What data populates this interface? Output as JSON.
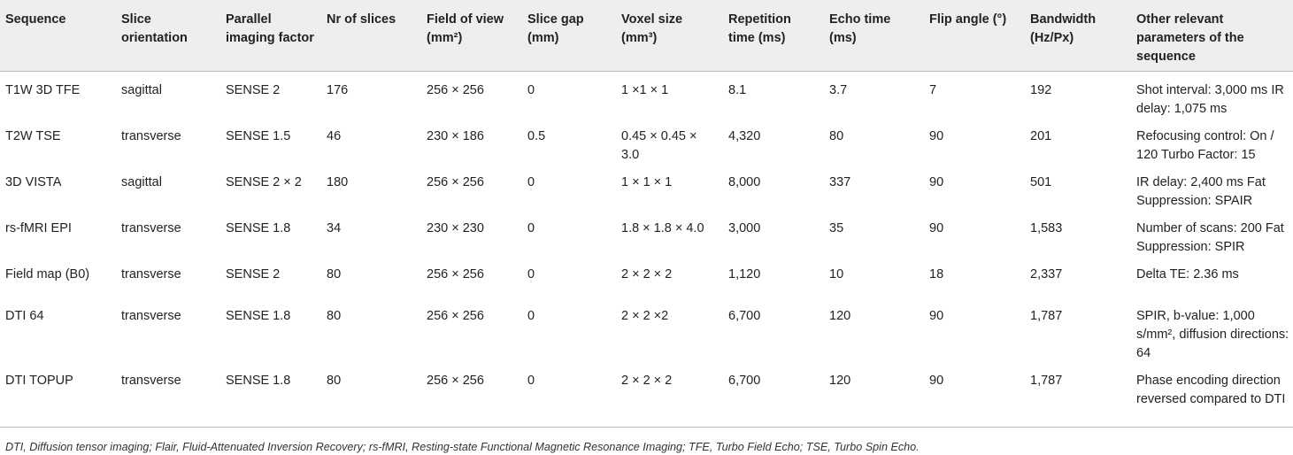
{
  "table": {
    "headers": {
      "sequence": "Sequence",
      "slice_orientation": "Slice orientation",
      "parallel_imaging_factor": "Parallel imaging factor",
      "nr_of_slices": "Nr of slices",
      "field_of_view": "Field of view (mm²)",
      "slice_gap": "Slice gap (mm)",
      "voxel_size": "Voxel size (mm³)",
      "repetition_time": "Repetition time (ms)",
      "echo_time": "Echo time (ms)",
      "flip_angle": "Flip angle (°)",
      "bandwidth": "Bandwidth (Hz/Px)",
      "other": "Other relevant parameters of the sequence"
    },
    "rows": [
      {
        "sequence": "T1W 3D TFE",
        "orientation": "sagittal",
        "parallel": "SENSE 2",
        "slices": "176",
        "fov": "256 × 256",
        "gap": "0",
        "voxel": "1 ×1 × 1",
        "tr": "8.1",
        "te": "3.7",
        "flip": "7",
        "bandwidth": "192",
        "other": "Shot interval: 3,000 ms IR delay: 1,075 ms"
      },
      {
        "sequence": "T2W TSE",
        "orientation": "transverse",
        "parallel": "SENSE 1.5",
        "slices": "46",
        "fov": "230 × 186",
        "gap": "0.5",
        "voxel": "0.45 × 0.45 × 3.0",
        "tr": "4,320",
        "te": "80",
        "flip": "90",
        "bandwidth": "201",
        "other": "Refocusing control: On / 120 Turbo Factor: 15"
      },
      {
        "sequence": "3D VISTA",
        "orientation": "sagittal",
        "parallel": "SENSE 2 × 2",
        "slices": "180",
        "fov": "256 × 256",
        "gap": "0",
        "voxel": "1 × 1 × 1",
        "tr": "8,000",
        "te": "337",
        "flip": "90",
        "bandwidth": "501",
        "other": "IR delay: 2,400 ms Fat Suppression: SPAIR"
      },
      {
        "sequence": "rs-fMRI EPI",
        "orientation": "transverse",
        "parallel": "SENSE 1.8",
        "slices": "34",
        "fov": "230 × 230",
        "gap": "0",
        "voxel": "1.8 × 1.8 × 4.0",
        "tr": "3,000",
        "te": "35",
        "flip": "90",
        "bandwidth": "1,583",
        "other": "Number of scans: 200 Fat Suppression: SPIR"
      },
      {
        "sequence": "Field map (B0)",
        "orientation": "transverse",
        "parallel": "SENSE 2",
        "slices": "80",
        "fov": "256 × 256",
        "gap": "0",
        "voxel": "2 × 2 × 2",
        "tr": "1,120",
        "te": "10",
        "flip": "18",
        "bandwidth": "2,337",
        "other": "Delta TE: 2.36 ms"
      },
      {
        "sequence": "DTI 64",
        "orientation": "transverse",
        "parallel": "SENSE 1.8",
        "slices": "80",
        "fov": "256 × 256",
        "gap": "0",
        "voxel": "2 × 2 ×2",
        "tr": "6,700",
        "te": "120",
        "flip": "90",
        "bandwidth": "1,787",
        "other": "SPIR, b-value: 1,000 s/mm², diffusion directions: 64"
      },
      {
        "sequence": "DTI TOPUP",
        "orientation": "transverse",
        "parallel": "SENSE 1.8",
        "slices": "80",
        "fov": "256 × 256",
        "gap": "0",
        "voxel": "2 × 2 × 2",
        "tr": "6,700",
        "te": "120",
        "flip": "90",
        "bandwidth": "1,787",
        "other": "Phase encoding direction reversed compared to DTI"
      }
    ]
  },
  "footnote": "DTI, Diffusion tensor imaging; Flair, Fluid-Attenuated Inversion Recovery; rs-fMRI, Resting-state Functional Magnetic Resonance Imaging; TFE, Turbo Field Echo; TSE, Turbo Spin Echo."
}
